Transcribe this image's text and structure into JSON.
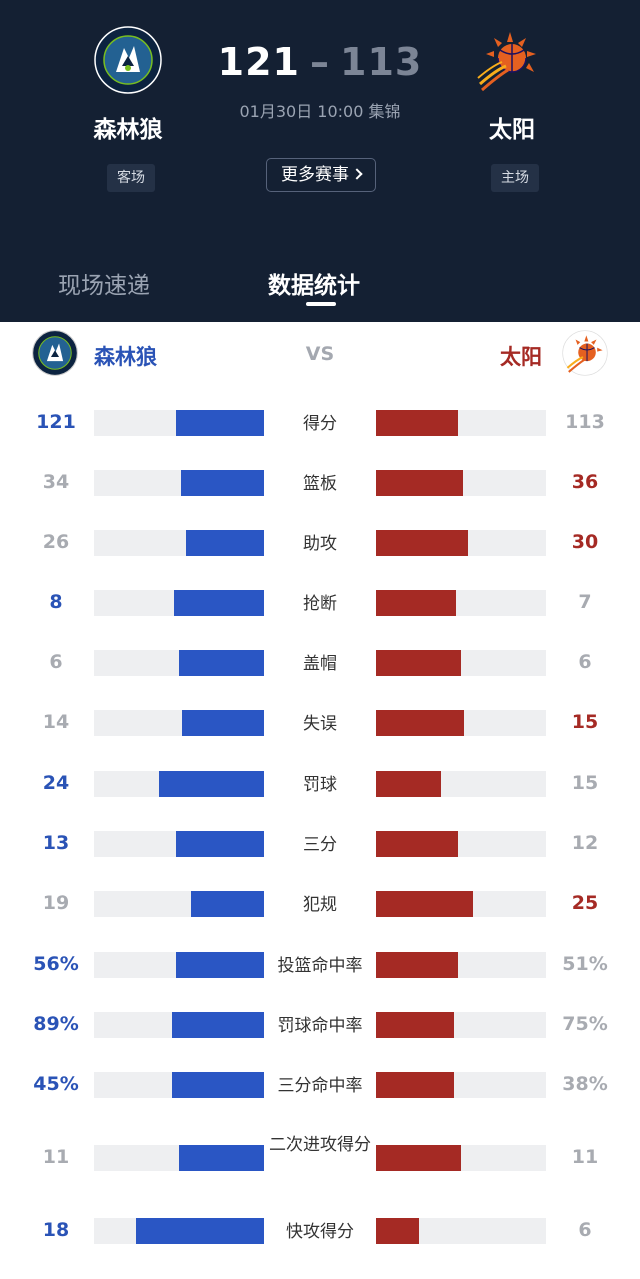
{
  "header": {
    "home_team": {
      "name": "森林狼",
      "side": "客场",
      "score": "121",
      "logo": "timberwolves-logo"
    },
    "away_team": {
      "name": "太阳",
      "side": "主场",
      "score": "113",
      "logo": "suns-logo"
    },
    "score_sep": "–",
    "match_info": "01月30日 10:00 集锦",
    "more_button": "更多赛事",
    "tabs": [
      {
        "label": "现场速递",
        "active": false
      },
      {
        "label": "数据统计",
        "active": true
      }
    ]
  },
  "team_bar": {
    "left_name": "森林狼",
    "vs": "VS",
    "right_name": "太阳"
  },
  "colors": {
    "left_accent": "#2a56c4",
    "right_accent": "#a52a24",
    "header_bg": "#142033"
  },
  "stats": [
    {
      "label": "得分",
      "left": "121",
      "right": "113",
      "left_frac": 0.52,
      "right_frac": 0.48,
      "winner": "left"
    },
    {
      "label": "篮板",
      "left": "34",
      "right": "36",
      "left_frac": 0.49,
      "right_frac": 0.51,
      "winner": "right"
    },
    {
      "label": "助攻",
      "left": "26",
      "right": "30",
      "left_frac": 0.46,
      "right_frac": 0.54,
      "winner": "right"
    },
    {
      "label": "抢断",
      "left": "8",
      "right": "7",
      "left_frac": 0.53,
      "right_frac": 0.47,
      "winner": "left"
    },
    {
      "label": "盖帽",
      "left": "6",
      "right": "6",
      "left_frac": 0.5,
      "right_frac": 0.5,
      "winner": "none"
    },
    {
      "label": "失误",
      "left": "14",
      "right": "15",
      "left_frac": 0.48,
      "right_frac": 0.52,
      "winner": "right"
    },
    {
      "label": "罚球",
      "left": "24",
      "right": "15",
      "left_frac": 0.62,
      "right_frac": 0.38,
      "winner": "left"
    },
    {
      "label": "三分",
      "left": "13",
      "right": "12",
      "left_frac": 0.52,
      "right_frac": 0.48,
      "winner": "left"
    },
    {
      "label": "犯规",
      "left": "19",
      "right": "25",
      "left_frac": 0.43,
      "right_frac": 0.57,
      "winner": "right"
    },
    {
      "label": "投篮命中率",
      "left": "56%",
      "right": "51%",
      "left_frac": 0.52,
      "right_frac": 0.48,
      "winner": "left"
    },
    {
      "label": "罚球命中率",
      "left": "89%",
      "right": "75%",
      "left_frac": 0.54,
      "right_frac": 0.46,
      "winner": "left"
    },
    {
      "label": "三分命中率",
      "left": "45%",
      "right": "38%",
      "left_frac": 0.54,
      "right_frac": 0.46,
      "winner": "left"
    },
    {
      "label": "二次进攻得分",
      "left": "11",
      "right": "11",
      "left_frac": 0.5,
      "right_frac": 0.5,
      "winner": "none"
    },
    {
      "label": "快攻得分",
      "left": "18",
      "right": "6",
      "left_frac": 0.75,
      "right_frac": 0.25,
      "winner": "left"
    }
  ]
}
